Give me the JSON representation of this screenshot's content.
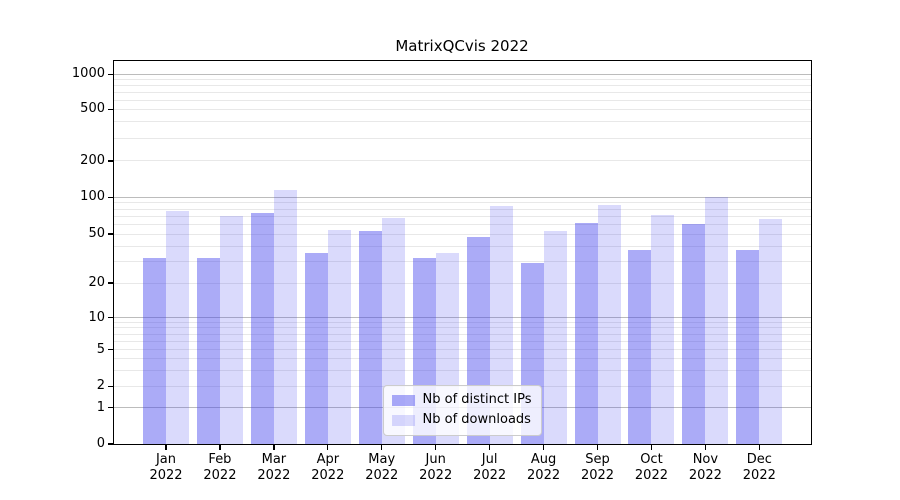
{
  "chart_data": {
    "type": "bar",
    "title": "MatrixQCvis 2022",
    "categories": [
      "Jan",
      "Feb",
      "Mar",
      "Apr",
      "May",
      "Jun",
      "Jul",
      "Aug",
      "Sep",
      "Oct",
      "Nov",
      "Dec"
    ],
    "x_axis": {
      "year_label": "2022"
    },
    "series": [
      {
        "name": "Nb of distinct IPs",
        "color": "rgba(68,68,238,0.45)",
        "values": [
          32,
          32,
          75,
          35,
          53,
          32,
          47,
          29,
          62,
          37,
          61,
          37
        ]
      },
      {
        "name": "Nb of downloads",
        "color": "rgba(68,68,238,0.20)",
        "values": [
          77,
          71,
          116,
          54,
          68,
          35,
          85,
          53,
          87,
          72,
          101,
          66
        ]
      }
    ],
    "y_axis": {
      "scale": "symlog",
      "ticks": [
        0,
        1,
        2,
        5,
        10,
        20,
        50,
        100,
        200,
        500,
        1000
      ],
      "anchors": [
        [
          0,
          1.0
        ],
        [
          1,
          0.905
        ],
        [
          2,
          0.849
        ],
        [
          5,
          0.754
        ],
        [
          10,
          0.67
        ],
        [
          20,
          0.58
        ],
        [
          50,
          0.452
        ],
        [
          100,
          0.356
        ],
        [
          200,
          0.261
        ],
        [
          500,
          0.126
        ],
        [
          1000,
          0.035
        ]
      ],
      "major_gridlines": [
        1,
        10,
        100,
        1000
      ],
      "minor_gridlines": [
        2,
        3,
        4,
        5,
        6,
        7,
        8,
        9,
        20,
        30,
        40,
        50,
        60,
        70,
        80,
        90,
        200,
        300,
        400,
        500,
        600,
        700,
        800,
        900
      ]
    },
    "legend": {
      "position": "lower center"
    },
    "grid": true
  },
  "colors": {
    "background": "#ffffff",
    "axis": "#000000",
    "grid_major": "#bcbcbc",
    "grid_minor": "#e8e8e8",
    "bar_ips": "rgba(68,68,238,0.45)",
    "bar_downloads": "rgba(68,68,238,0.20)",
    "legend_border": "#cccccc",
    "text": "#000000"
  }
}
